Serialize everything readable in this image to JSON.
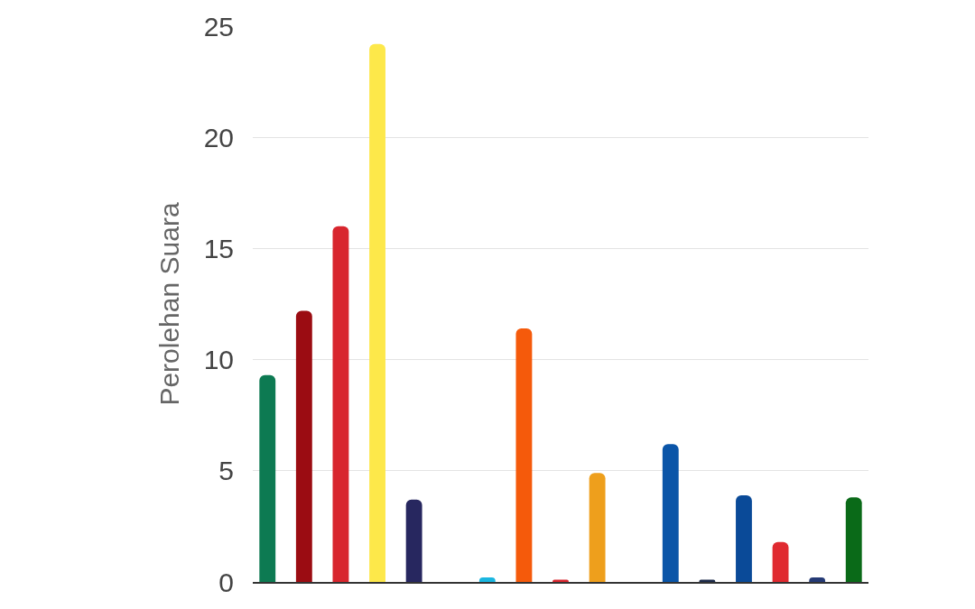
{
  "chart_data": {
    "type": "bar",
    "ylabel": "Perolehan Suara",
    "categories": [
      null,
      null,
      null,
      null,
      null,
      null,
      null,
      null,
      null,
      null,
      null,
      null,
      null,
      null,
      null,
      null,
      null
    ],
    "values": [
      9.3,
      12.2,
      16.0,
      24.2,
      3.7,
      null,
      0.2,
      11.4,
      0.1,
      4.9,
      null,
      6.2,
      0.1,
      3.9,
      1.8,
      0.2,
      3.8
    ],
    "colors": [
      "#0d7a52",
      "#9b0c12",
      "#d8262e",
      "#fde84a",
      "#27275f",
      null,
      "#1ab6e0",
      "#f55a0b",
      "#d8262e",
      "#ee9f1c",
      null,
      "#0a55a8",
      "#1c2a4a",
      "#0a4a98",
      "#e02a30",
      "#253a75",
      "#0a6a18"
    ],
    "ylim": [
      0,
      25
    ],
    "yticks": [
      0,
      5,
      10,
      15,
      20,
      25
    ],
    "grid": "y",
    "tick_labels": "y"
  }
}
